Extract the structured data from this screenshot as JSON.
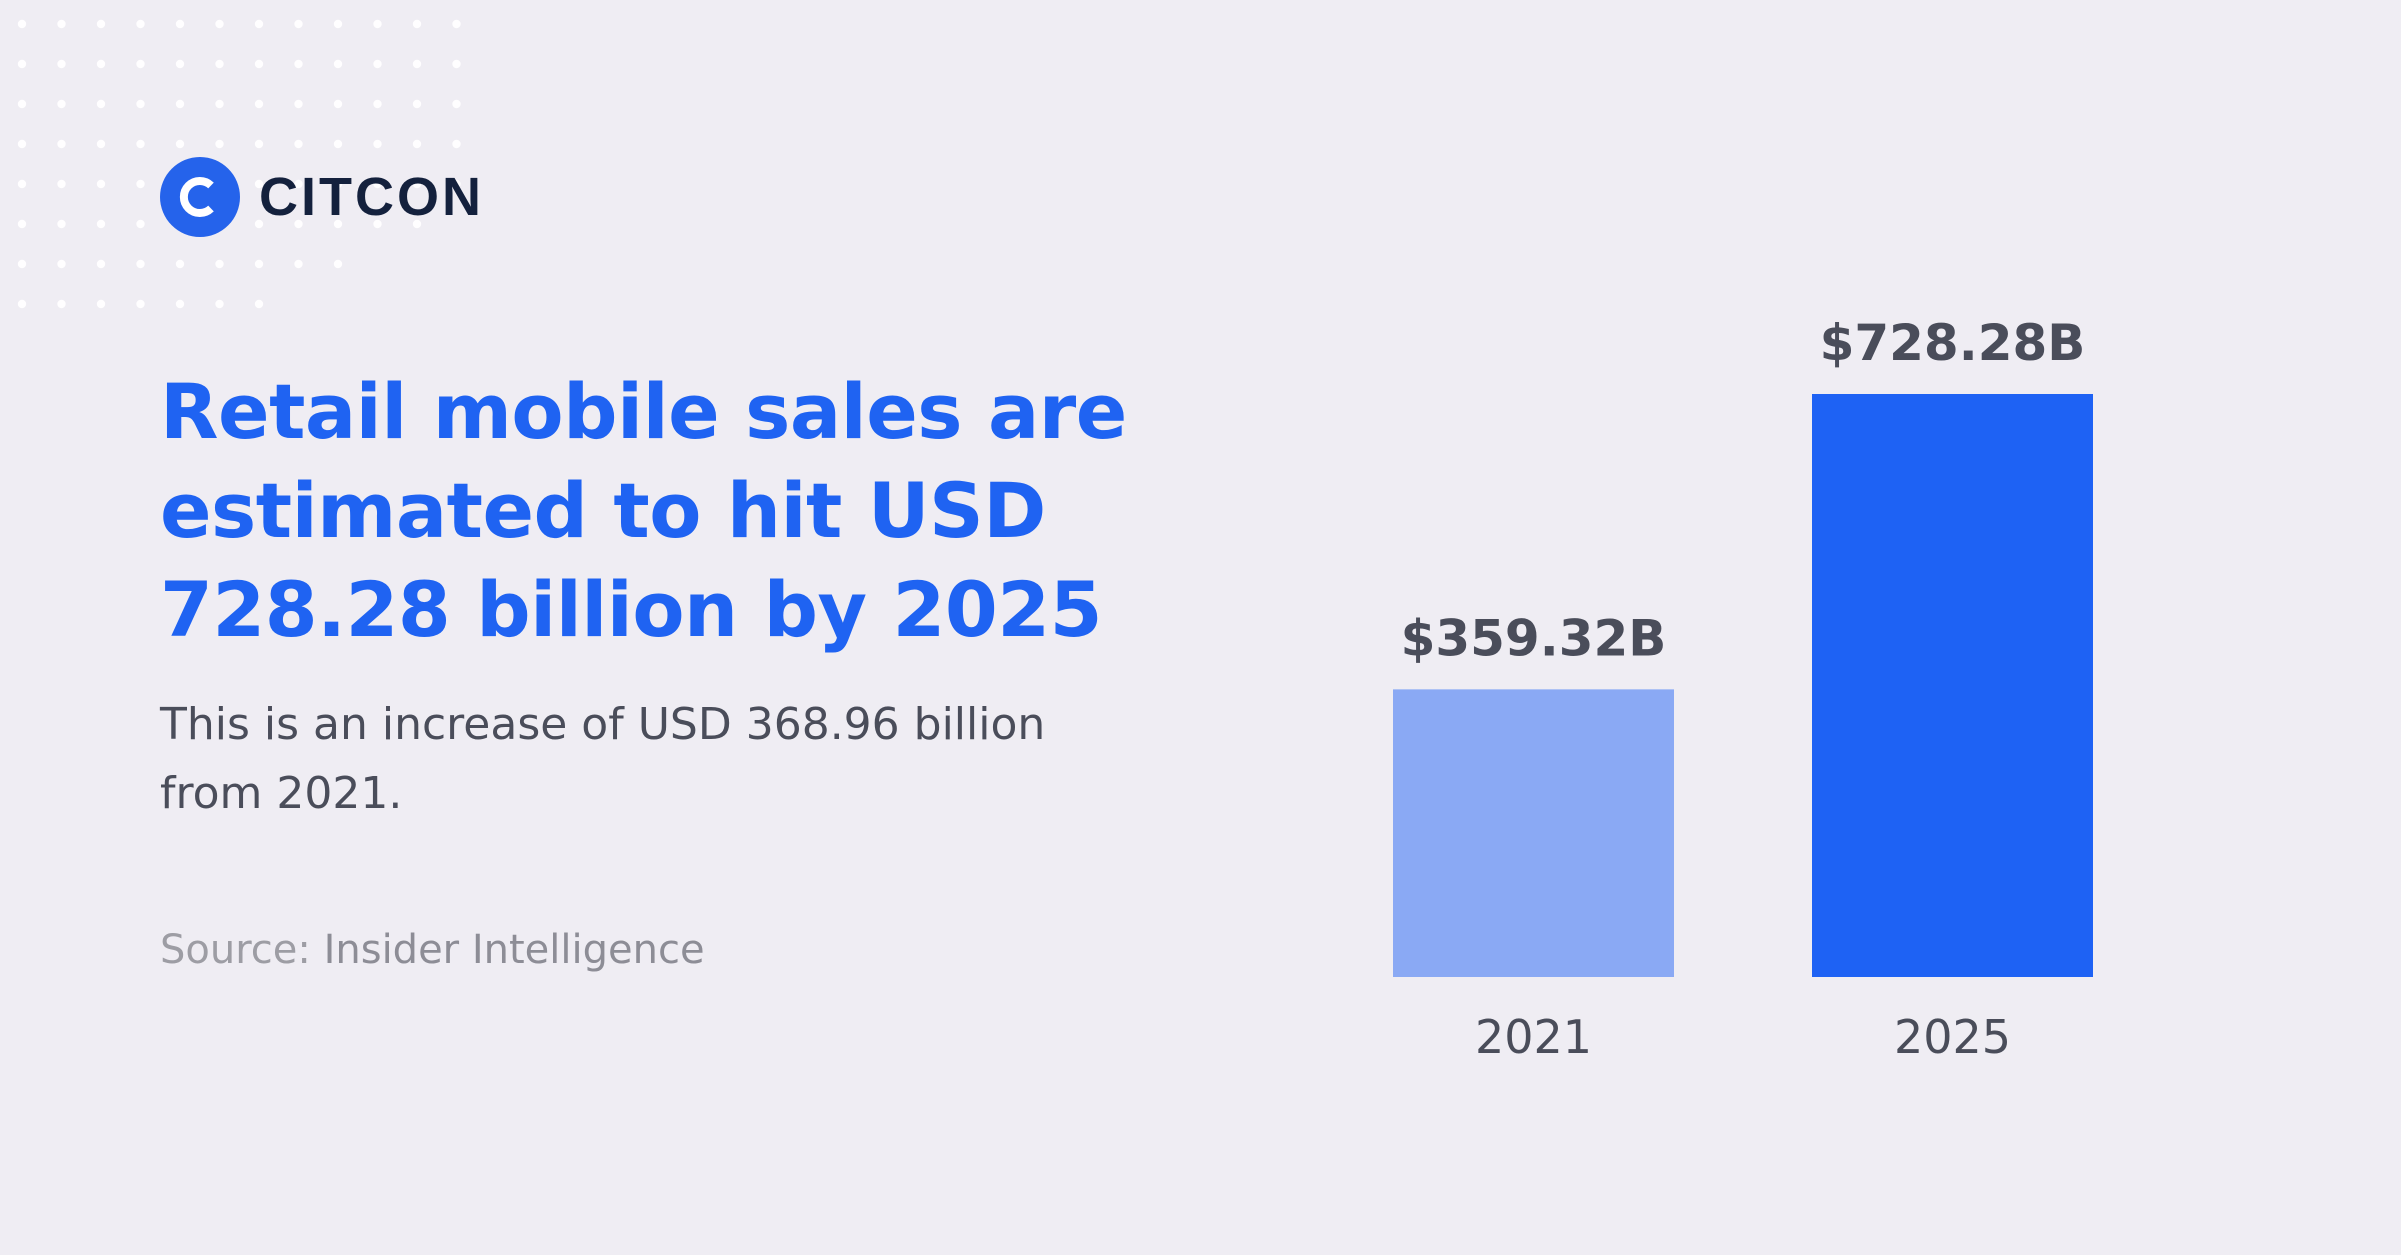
{
  "brand": {
    "name": "CITCON",
    "color": "#2563eb"
  },
  "headline": "Retail mobile sales are estimated to hit USD 728.28 billion by 2025",
  "subtext": "This is an increase of USD 368.96 billion from 2021.",
  "source": {
    "label": "Source:",
    "value": "Insider Intelligence"
  },
  "colors": {
    "background": "#efedf3",
    "accent": "#1f63f2",
    "bar_light": "#8aa9f4",
    "bar_dark": "#1e62f4",
    "text_dark": "#4a4d5a"
  },
  "chart_data": {
    "type": "bar",
    "categories": [
      "2021",
      "2025"
    ],
    "values": [
      359.32,
      728.28
    ],
    "value_labels": [
      "$359.32B",
      "$728.28B"
    ],
    "bar_colors": [
      "#8aa9f4",
      "#1e62f4"
    ],
    "ylim": [
      0,
      728.28
    ],
    "grid": false,
    "legend": "none"
  }
}
